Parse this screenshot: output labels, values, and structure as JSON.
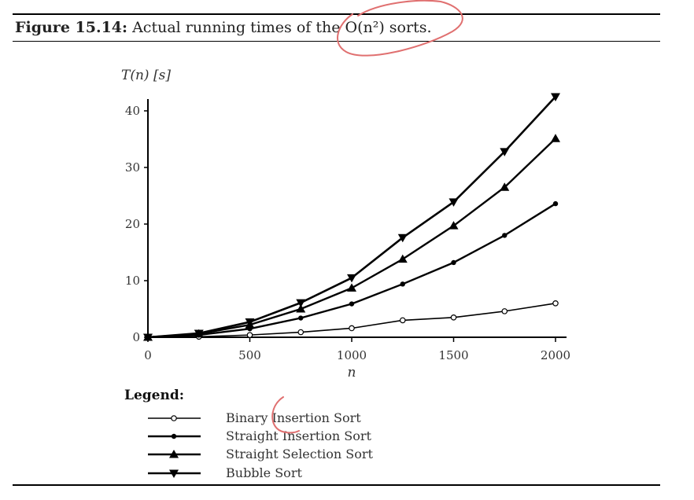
{
  "caption": {
    "figure_label": "Figure 15.14:",
    "text": "Actual running times of the O(n²) sorts."
  },
  "chart_data": {
    "type": "line",
    "ylabel": "T(n) [s]",
    "xlabel": "n",
    "xlim": [
      0,
      2000
    ],
    "ylim": [
      0,
      42
    ],
    "xticks": [
      0,
      500,
      1000,
      1500,
      2000
    ],
    "yticks": [
      0,
      10,
      20,
      30,
      40
    ],
    "grid": false,
    "legend_title": "Legend:",
    "legend_position": "bottom-left",
    "series": [
      {
        "name": "Binary Insertion Sort",
        "marker": "open-circle",
        "x": [
          0,
          250,
          500,
          750,
          1000,
          1250,
          1500,
          1750,
          2000
        ],
        "y": [
          0,
          0.1,
          0.4,
          0.9,
          1.6,
          3.0,
          3.5,
          4.6,
          6.0
        ]
      },
      {
        "name": "Straight Insertion Sort",
        "marker": "filled-circle",
        "x": [
          0,
          250,
          500,
          750,
          1000,
          1250,
          1500,
          1750,
          2000
        ],
        "y": [
          0,
          0.4,
          1.5,
          3.4,
          5.9,
          9.4,
          13.2,
          18.0,
          23.6
        ]
      },
      {
        "name": "Straight Selection Sort",
        "marker": "triangle-up",
        "x": [
          0,
          250,
          500,
          750,
          1000,
          1250,
          1500,
          1750,
          2000
        ],
        "y": [
          0,
          0.6,
          2.2,
          5.0,
          8.7,
          13.8,
          19.7,
          26.5,
          35.1
        ]
      },
      {
        "name": "Bubble Sort",
        "marker": "triangle-down",
        "x": [
          0,
          250,
          500,
          750,
          1000,
          1250,
          1500,
          1750,
          2000
        ],
        "y": [
          0,
          0.7,
          2.7,
          6.1,
          10.5,
          17.6,
          23.9,
          32.8,
          42.5
        ]
      }
    ]
  },
  "annotation_color": "#e07070"
}
